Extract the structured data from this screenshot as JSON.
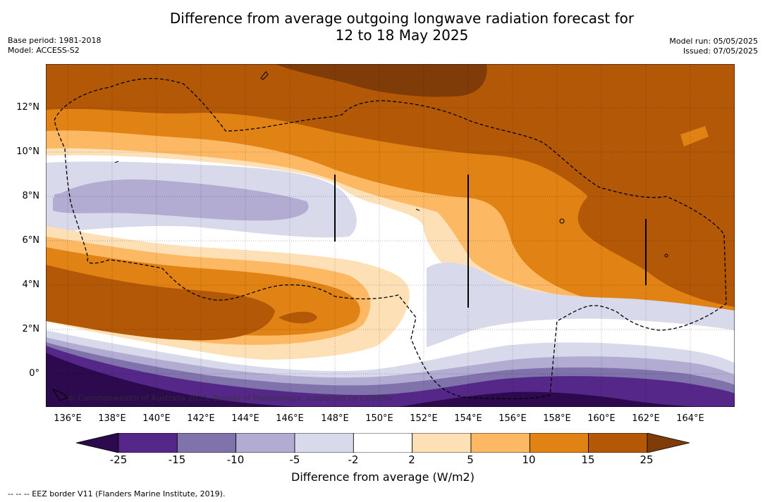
{
  "title": {
    "line1": "Difference from average outgoing longwave radiation forecast for",
    "line2": "12 to 18 May 2025"
  },
  "meta_left": {
    "base_period": "Base period: 1981-2018",
    "model": "Model: ACCESS-S2"
  },
  "meta_right": {
    "model_run": "Model run: 05/05/2025",
    "issued": "Issued: 07/05/2025"
  },
  "map": {
    "credit": "© Commonwealth of Australia 2025, Bureau of Meteorology, supported by COSPPac",
    "lat_labels": [
      "12°N",
      "10°N",
      "8°N",
      "6°N",
      "4°N",
      "2°N",
      "0°"
    ],
    "lon_labels": [
      "136°E",
      "138°E",
      "140°E",
      "142°E",
      "144°E",
      "146°E",
      "148°E",
      "150°E",
      "152°E",
      "154°E",
      "156°E",
      "158°E",
      "160°E",
      "162°E",
      "164°E"
    ]
  },
  "colorbar": {
    "tick_labels": [
      "-25",
      "-15",
      "-10",
      "-5",
      "-2",
      "2",
      "5",
      "10",
      "15",
      "25"
    ],
    "colors": [
      "#2d0a4e",
      "#542788",
      "#8073ac",
      "#b2abd2",
      "#d8daeb",
      "#ffffff",
      "#fee0b6",
      "#fdb863",
      "#e08214",
      "#b35806",
      "#7f3b08"
    ],
    "title": "Difference from average (W/m2)"
  },
  "footnote": "--  --  -- EEZ border V11 (Flanders Marine Institute, 2019)."
}
